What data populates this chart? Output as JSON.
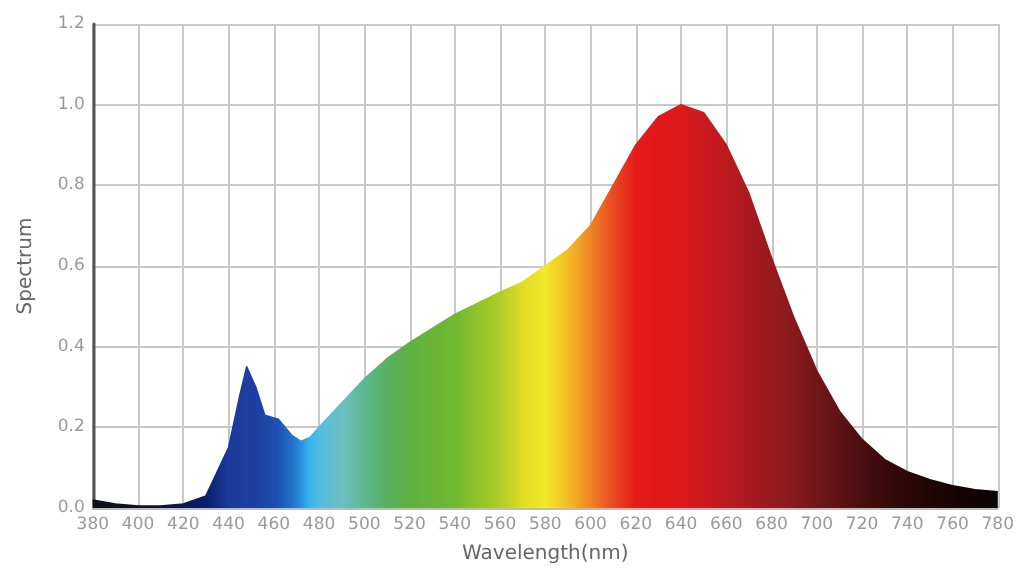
{
  "chart_data": {
    "type": "area",
    "xlabel": "Wavelength(nm)",
    "ylabel": "Spectrum",
    "x": [
      380,
      390,
      400,
      410,
      420,
      430,
      440,
      445,
      448,
      452,
      456,
      462,
      468,
      472,
      476,
      480,
      490,
      500,
      510,
      520,
      540,
      560,
      570,
      580,
      590,
      600,
      610,
      620,
      630,
      640,
      650,
      660,
      670,
      680,
      690,
      700,
      710,
      720,
      730,
      740,
      750,
      760,
      770,
      780
    ],
    "values": [
      0.02,
      0.01,
      0.005,
      0.005,
      0.01,
      0.03,
      0.15,
      0.28,
      0.35,
      0.3,
      0.23,
      0.22,
      0.18,
      0.165,
      0.175,
      0.2,
      0.26,
      0.32,
      0.37,
      0.41,
      0.48,
      0.535,
      0.56,
      0.6,
      0.64,
      0.7,
      0.8,
      0.9,
      0.97,
      1.0,
      0.98,
      0.9,
      0.78,
      0.62,
      0.47,
      0.34,
      0.24,
      0.17,
      0.12,
      0.09,
      0.07,
      0.055,
      0.045,
      0.04
    ],
    "colors": [
      "#101018",
      "#101020",
      "#101028",
      "#101030",
      "#0c1850",
      "#0a1e6e",
      "#1a3a9a",
      "#1c3c9c",
      "#1c3ea0",
      "#1c40a2",
      "#1c46a8",
      "#1e52b4",
      "#2070c8",
      "#2a90dc",
      "#38b4ec",
      "#50bce0",
      "#6cc0c0",
      "#5cb890",
      "#58b060",
      "#5eb040",
      "#70b830",
      "#b0cc28",
      "#e0dc24",
      "#f4e82a",
      "#f4bc24",
      "#f08424",
      "#ea4a20",
      "#e41c1a",
      "#e21818",
      "#dc1a1a",
      "#cc1a1e",
      "#bc1a20",
      "#a81a20",
      "#981a1e",
      "#861a1c",
      "#721618",
      "#5e1214",
      "#4a0e10",
      "#3a0a0c",
      "#2c0808",
      "#200606",
      "#180404",
      "#100404",
      "#080404"
    ],
    "xlim": [
      380,
      780
    ],
    "xticks": [
      380,
      400,
      420,
      440,
      460,
      480,
      500,
      520,
      540,
      560,
      580,
      600,
      620,
      640,
      660,
      680,
      700,
      720,
      740,
      760,
      780
    ],
    "ylim": [
      0,
      1.2
    ],
    "yticks": [
      {
        "value": 0,
        "label": "0.0"
      },
      {
        "value": 0.2,
        "label": "0.2"
      },
      {
        "value": 0.4,
        "label": "0.4"
      },
      {
        "value": 0.6,
        "label": "0.6"
      },
      {
        "value": 0.8,
        "label": "0.8"
      },
      {
        "value": 1.0,
        "label": "1.0"
      },
      {
        "value": 1.2,
        "label": "1.2"
      }
    ],
    "grid": true
  }
}
